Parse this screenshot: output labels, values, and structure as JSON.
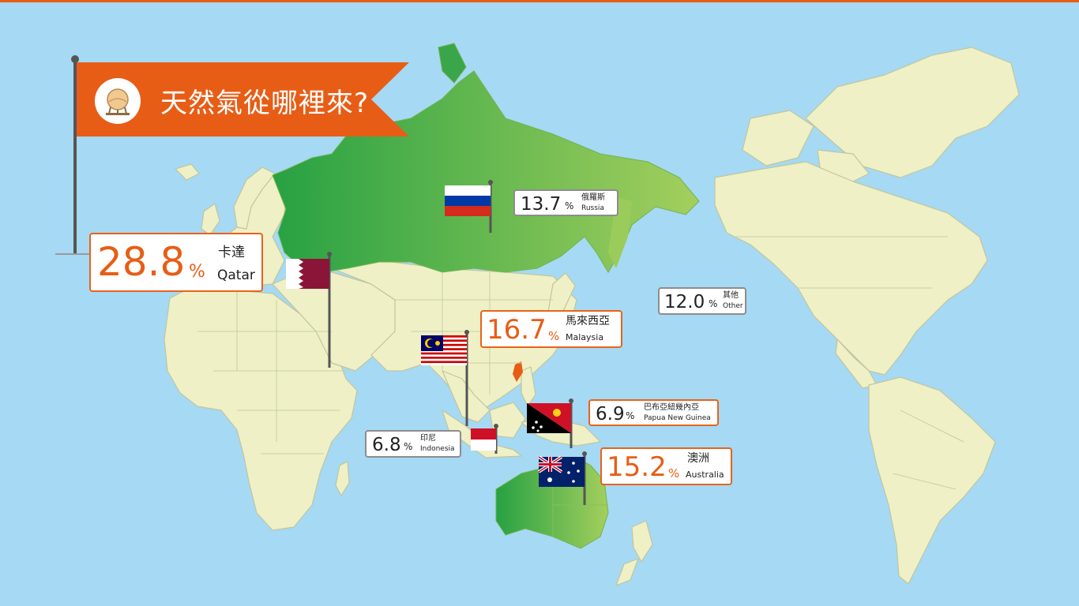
{
  "banner": {
    "title": "天然氣從哪裡來?",
    "icon": "gas-storage-tank-icon"
  },
  "colors": {
    "ocean": "#a6d9f3",
    "land": "#eff0c5",
    "highlight_dark": "#27a143",
    "highlight_light": "#a4cf5d",
    "accent": "#e85d16",
    "taiwan": "#e85d16"
  },
  "sources": [
    {
      "id": "qatar",
      "value": "28.8",
      "unit": "%",
      "zh": "卡達",
      "en": "Qatar"
    },
    {
      "id": "malaysia",
      "value": "16.7",
      "unit": "%",
      "zh": "馬來西亞",
      "en": "Malaysia"
    },
    {
      "id": "australia",
      "value": "15.2",
      "unit": "%",
      "zh": "澳洲",
      "en": "Australia"
    },
    {
      "id": "russia",
      "value": "13.7",
      "unit": "%",
      "zh": "俄羅斯",
      "en": "Russia"
    },
    {
      "id": "other",
      "value": "12.0",
      "unit": "%",
      "zh": "其他",
      "en": "Other"
    },
    {
      "id": "png",
      "value": "6.9",
      "unit": "%",
      "zh": "巴布亞紐幾內亞",
      "en": "Papua New Guinea"
    },
    {
      "id": "indonesia",
      "value": "6.8",
      "unit": "%",
      "zh": "印尼",
      "en": "Indonesia"
    }
  ]
}
